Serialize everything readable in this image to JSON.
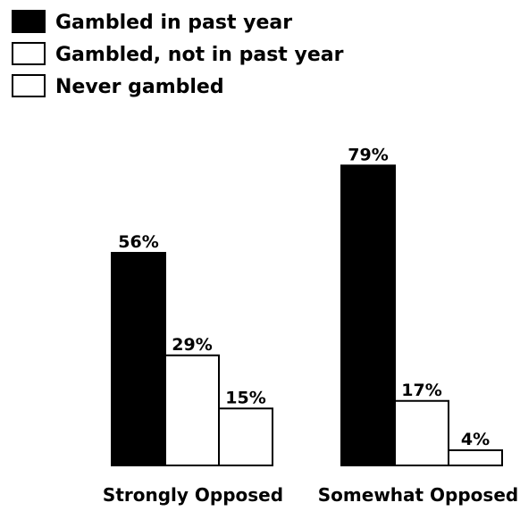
{
  "chart_data": {
    "type": "bar",
    "title": "",
    "xlabel": "",
    "ylabel": "",
    "categories": [
      "Strongly Opposed",
      "Somewhat Opposed"
    ],
    "ylim": [
      0,
      80
    ],
    "grid": false,
    "legend_position": "top-left",
    "series": [
      {
        "name": "Gambled in past year",
        "values": [
          56,
          79
        ],
        "labels": [
          "56%",
          "79%"
        ],
        "color": "#000000"
      },
      {
        "name": "Gambled, not in past year",
        "values": [
          29,
          17
        ],
        "labels": [
          "29%",
          "17%"
        ],
        "color": "#ffffff"
      },
      {
        "name": "Never gambled",
        "values": [
          15,
          4
        ],
        "labels": [
          "15%",
          "4%"
        ],
        "color": "#ffffff"
      }
    ]
  }
}
